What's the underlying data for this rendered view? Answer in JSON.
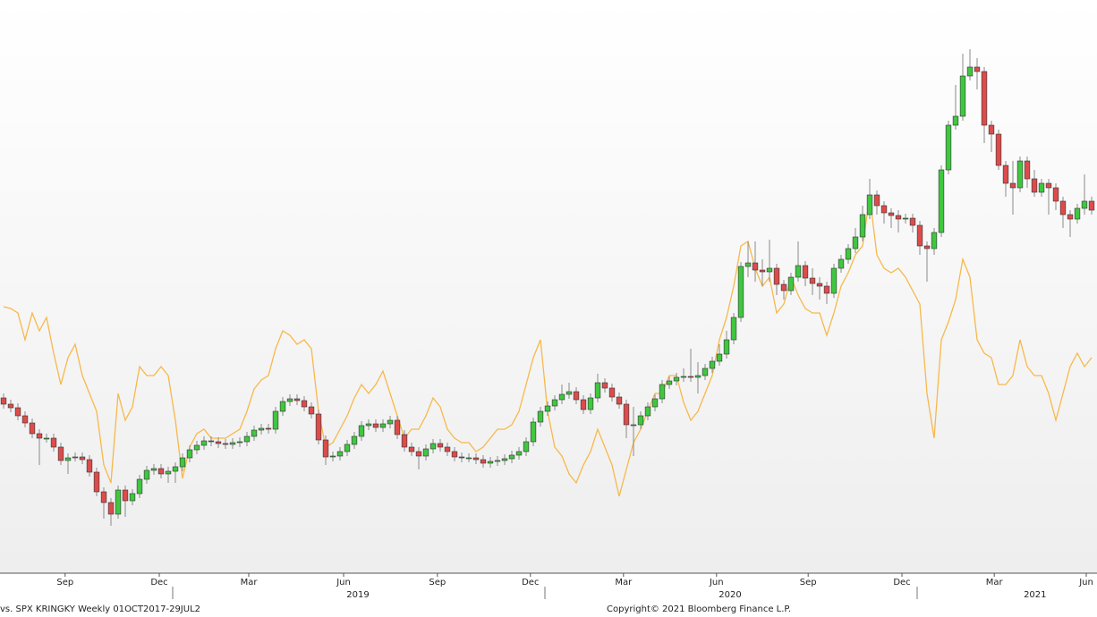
{
  "chart_data": {
    "type": "candlestick",
    "source": "vs. SPX KRINGKY  Weekly 01OCT2017-29JUL2",
    "copyright": "Copyright© 2021 Bloomberg Finance L.P.",
    "xlim": [
      -0.5,
      152.75
    ],
    "ylim": [
      0,
      640
    ],
    "xticks": [
      {
        "value": 8.6,
        "label": "Sep"
      },
      {
        "value": 21.75,
        "label": "Dec"
      },
      {
        "value": 34.25,
        "label": "Mar"
      },
      {
        "value": 47.5,
        "label": "Jun"
      },
      {
        "value": 60.6,
        "label": "Sep"
      },
      {
        "value": 73.6,
        "label": "Dec"
      },
      {
        "value": 86.6,
        "label": "Mar"
      },
      {
        "value": 99.6,
        "label": "Jun"
      },
      {
        "value": 112.4,
        "label": "Sep"
      },
      {
        "value": 125.5,
        "label": "Dec"
      },
      {
        "value": 138.4,
        "label": "Mar"
      },
      {
        "value": 151.25,
        "label": "Jun"
      }
    ],
    "year_ticks": [
      {
        "value": 49.5,
        "label": "2019"
      },
      {
        "value": 101.5,
        "label": "2020"
      },
      {
        "value": 144.1,
        "label": "2021"
      }
    ],
    "up_color": "#3fc73f",
    "down_color": "#de4b4b",
    "open": [
      195,
      188,
      184,
      175,
      167,
      155,
      150,
      150,
      140,
      125,
      128,
      129,
      126,
      112,
      90,
      78,
      65,
      92,
      80,
      88,
      104,
      114,
      116,
      110,
      113,
      118,
      128,
      137,
      142,
      147,
      146,
      144,
      143,
      145,
      146,
      152,
      159,
      161,
      160,
      180,
      191,
      194,
      192,
      185,
      177,
      148,
      129,
      130,
      135,
      143,
      152,
      164,
      166,
      162,
      166,
      170,
      154,
      140,
      135,
      130,
      138,
      144,
      140,
      135,
      129,
      128,
      128,
      126,
      122,
      124,
      125,
      127,
      131,
      135,
      146,
      168,
      180,
      186,
      193,
      199,
      202,
      193,
      182,
      195,
      212,
      206,
      196,
      188,
      165,
      165,
      175,
      185,
      194,
      210,
      214,
      218,
      219,
      218,
      220,
      228,
      236,
      244,
      260,
      285,
      342,
      346,
      338,
      336,
      340,
      322,
      315,
      330,
      343,
      329,
      323,
      320,
      312,
      340,
      350,
      362,
      375,
      400,
      422,
      410,
      402,
      399,
      395,
      396,
      388,
      365,
      362,
      380,
      450,
      500,
      510,
      555,
      565,
      560,
      500,
      490,
      455,
      435,
      430,
      460,
      440,
      425,
      435,
      430,
      415,
      400,
      395,
      407,
      415
    ],
    "high": [
      200,
      193,
      189,
      180,
      172,
      160,
      155,
      155,
      145,
      133,
      134,
      134,
      131,
      117,
      95,
      83,
      97,
      97,
      93,
      109,
      119,
      121,
      121,
      118,
      123,
      133,
      142,
      147,
      152,
      152,
      151,
      149,
      150,
      151,
      157,
      164,
      166,
      166,
      185,
      196,
      199,
      199,
      197,
      190,
      182,
      153,
      135,
      140,
      148,
      157,
      169,
      171,
      171,
      171,
      175,
      175,
      159,
      145,
      140,
      143,
      149,
      149,
      145,
      140,
      134,
      133,
      133,
      131,
      129,
      130,
      132,
      136,
      140,
      151,
      173,
      185,
      191,
      198,
      210,
      212,
      207,
      198,
      200,
      222,
      217,
      211,
      201,
      193,
      185,
      180,
      190,
      199,
      215,
      219,
      223,
      228,
      250,
      235,
      233,
      241,
      255,
      270,
      290,
      347,
      370,
      370,
      350,
      372,
      345,
      327,
      335,
      370,
      348,
      340,
      330,
      325,
      345,
      355,
      367,
      385,
      410,
      440,
      427,
      415,
      407,
      405,
      401,
      401,
      393,
      370,
      385,
      455,
      505,
      545,
      580,
      585,
      575,
      565,
      505,
      495,
      460,
      460,
      465,
      465,
      450,
      440,
      440,
      435,
      420,
      405,
      412,
      445,
      420
    ],
    "low": [
      183,
      179,
      170,
      162,
      150,
      120,
      145,
      135,
      120,
      110,
      124,
      121,
      107,
      85,
      60,
      52,
      60,
      62,
      75,
      83,
      99,
      109,
      105,
      100,
      100,
      113,
      123,
      132,
      137,
      141,
      139,
      138,
      138,
      140,
      141,
      147,
      154,
      155,
      155,
      175,
      186,
      187,
      180,
      172,
      143,
      120,
      124,
      125,
      130,
      138,
      147,
      159,
      157,
      157,
      161,
      149,
      135,
      130,
      115,
      125,
      133,
      135,
      130,
      124,
      123,
      123,
      121,
      117,
      117,
      119,
      120,
      122,
      126,
      130,
      141,
      163,
      175,
      181,
      188,
      194,
      188,
      177,
      177,
      190,
      201,
      191,
      183,
      150,
      130,
      160,
      170,
      180,
      189,
      205,
      209,
      213,
      213,
      200,
      215,
      223,
      231,
      239,
      255,
      280,
      330,
      325,
      320,
      325,
      310,
      305,
      310,
      325,
      320,
      310,
      305,
      300,
      307,
      335,
      345,
      357,
      370,
      395,
      400,
      390,
      385,
      380,
      390,
      380,
      355,
      325,
      355,
      375,
      445,
      495,
      505,
      550,
      540,
      480,
      470,
      450,
      420,
      400,
      425,
      430,
      420,
      420,
      400,
      405,
      385,
      375,
      390,
      400,
      400
    ],
    "close": [
      188,
      184,
      175,
      167,
      155,
      150,
      150,
      140,
      125,
      128,
      129,
      126,
      112,
      90,
      78,
      65,
      92,
      80,
      88,
      104,
      114,
      116,
      110,
      113,
      118,
      128,
      137,
      142,
      147,
      146,
      144,
      143,
      145,
      146,
      152,
      159,
      161,
      160,
      180,
      191,
      194,
      192,
      185,
      177,
      148,
      129,
      130,
      135,
      143,
      152,
      164,
      166,
      162,
      166,
      170,
      154,
      140,
      135,
      130,
      138,
      144,
      140,
      135,
      129,
      128,
      128,
      126,
      122,
      124,
      125,
      127,
      131,
      135,
      146,
      168,
      180,
      186,
      193,
      199,
      202,
      193,
      182,
      195,
      212,
      206,
      196,
      188,
      165,
      165,
      175,
      185,
      194,
      210,
      214,
      218,
      219,
      218,
      220,
      228,
      236,
      244,
      260,
      285,
      342,
      346,
      338,
      336,
      340,
      322,
      315,
      330,
      343,
      329,
      323,
      320,
      312,
      340,
      350,
      362,
      375,
      400,
      422,
      410,
      402,
      399,
      395,
      396,
      388,
      365,
      362,
      380,
      450,
      500,
      510,
      555,
      565,
      560,
      500,
      490,
      455,
      435,
      430,
      460,
      440,
      425,
      435,
      430,
      415,
      400,
      395,
      407,
      415,
      405
    ],
    "line": {
      "type": "line",
      "color": "#f7b84a",
      "values": [
        297,
        295,
        290,
        260,
        290,
        270,
        285,
        245,
        210,
        240,
        255,
        220,
        200,
        180,
        120,
        100,
        200,
        170,
        185,
        230,
        220,
        220,
        230,
        220,
        170,
        105,
        140,
        155,
        160,
        150,
        150,
        150,
        155,
        160,
        180,
        205,
        215,
        220,
        250,
        270,
        265,
        255,
        260,
        250,
        180,
        140,
        145,
        160,
        175,
        195,
        210,
        200,
        210,
        225,
        200,
        175,
        150,
        160,
        160,
        175,
        195,
        185,
        160,
        150,
        145,
        145,
        135,
        140,
        150,
        160,
        160,
        165,
        180,
        210,
        240,
        260,
        180,
        140,
        130,
        110,
        100,
        120,
        135,
        160,
        140,
        120,
        85,
        115,
        145,
        160,
        180,
        200,
        200,
        220,
        220,
        190,
        170,
        180,
        200,
        220,
        260,
        285,
        320,
        365,
        370,
        340,
        320,
        330,
        290,
        300,
        330,
        310,
        295,
        290,
        290,
        265,
        290,
        320,
        335,
        355,
        365,
        420,
        355,
        340,
        335,
        340,
        330,
        315,
        300,
        200,
        150,
        260,
        280,
        305,
        350,
        330,
        260,
        245,
        240,
        210,
        210,
        220,
        260,
        230,
        220,
        220,
        200,
        170,
        200,
        230,
        245,
        230,
        240
      ]
    }
  }
}
